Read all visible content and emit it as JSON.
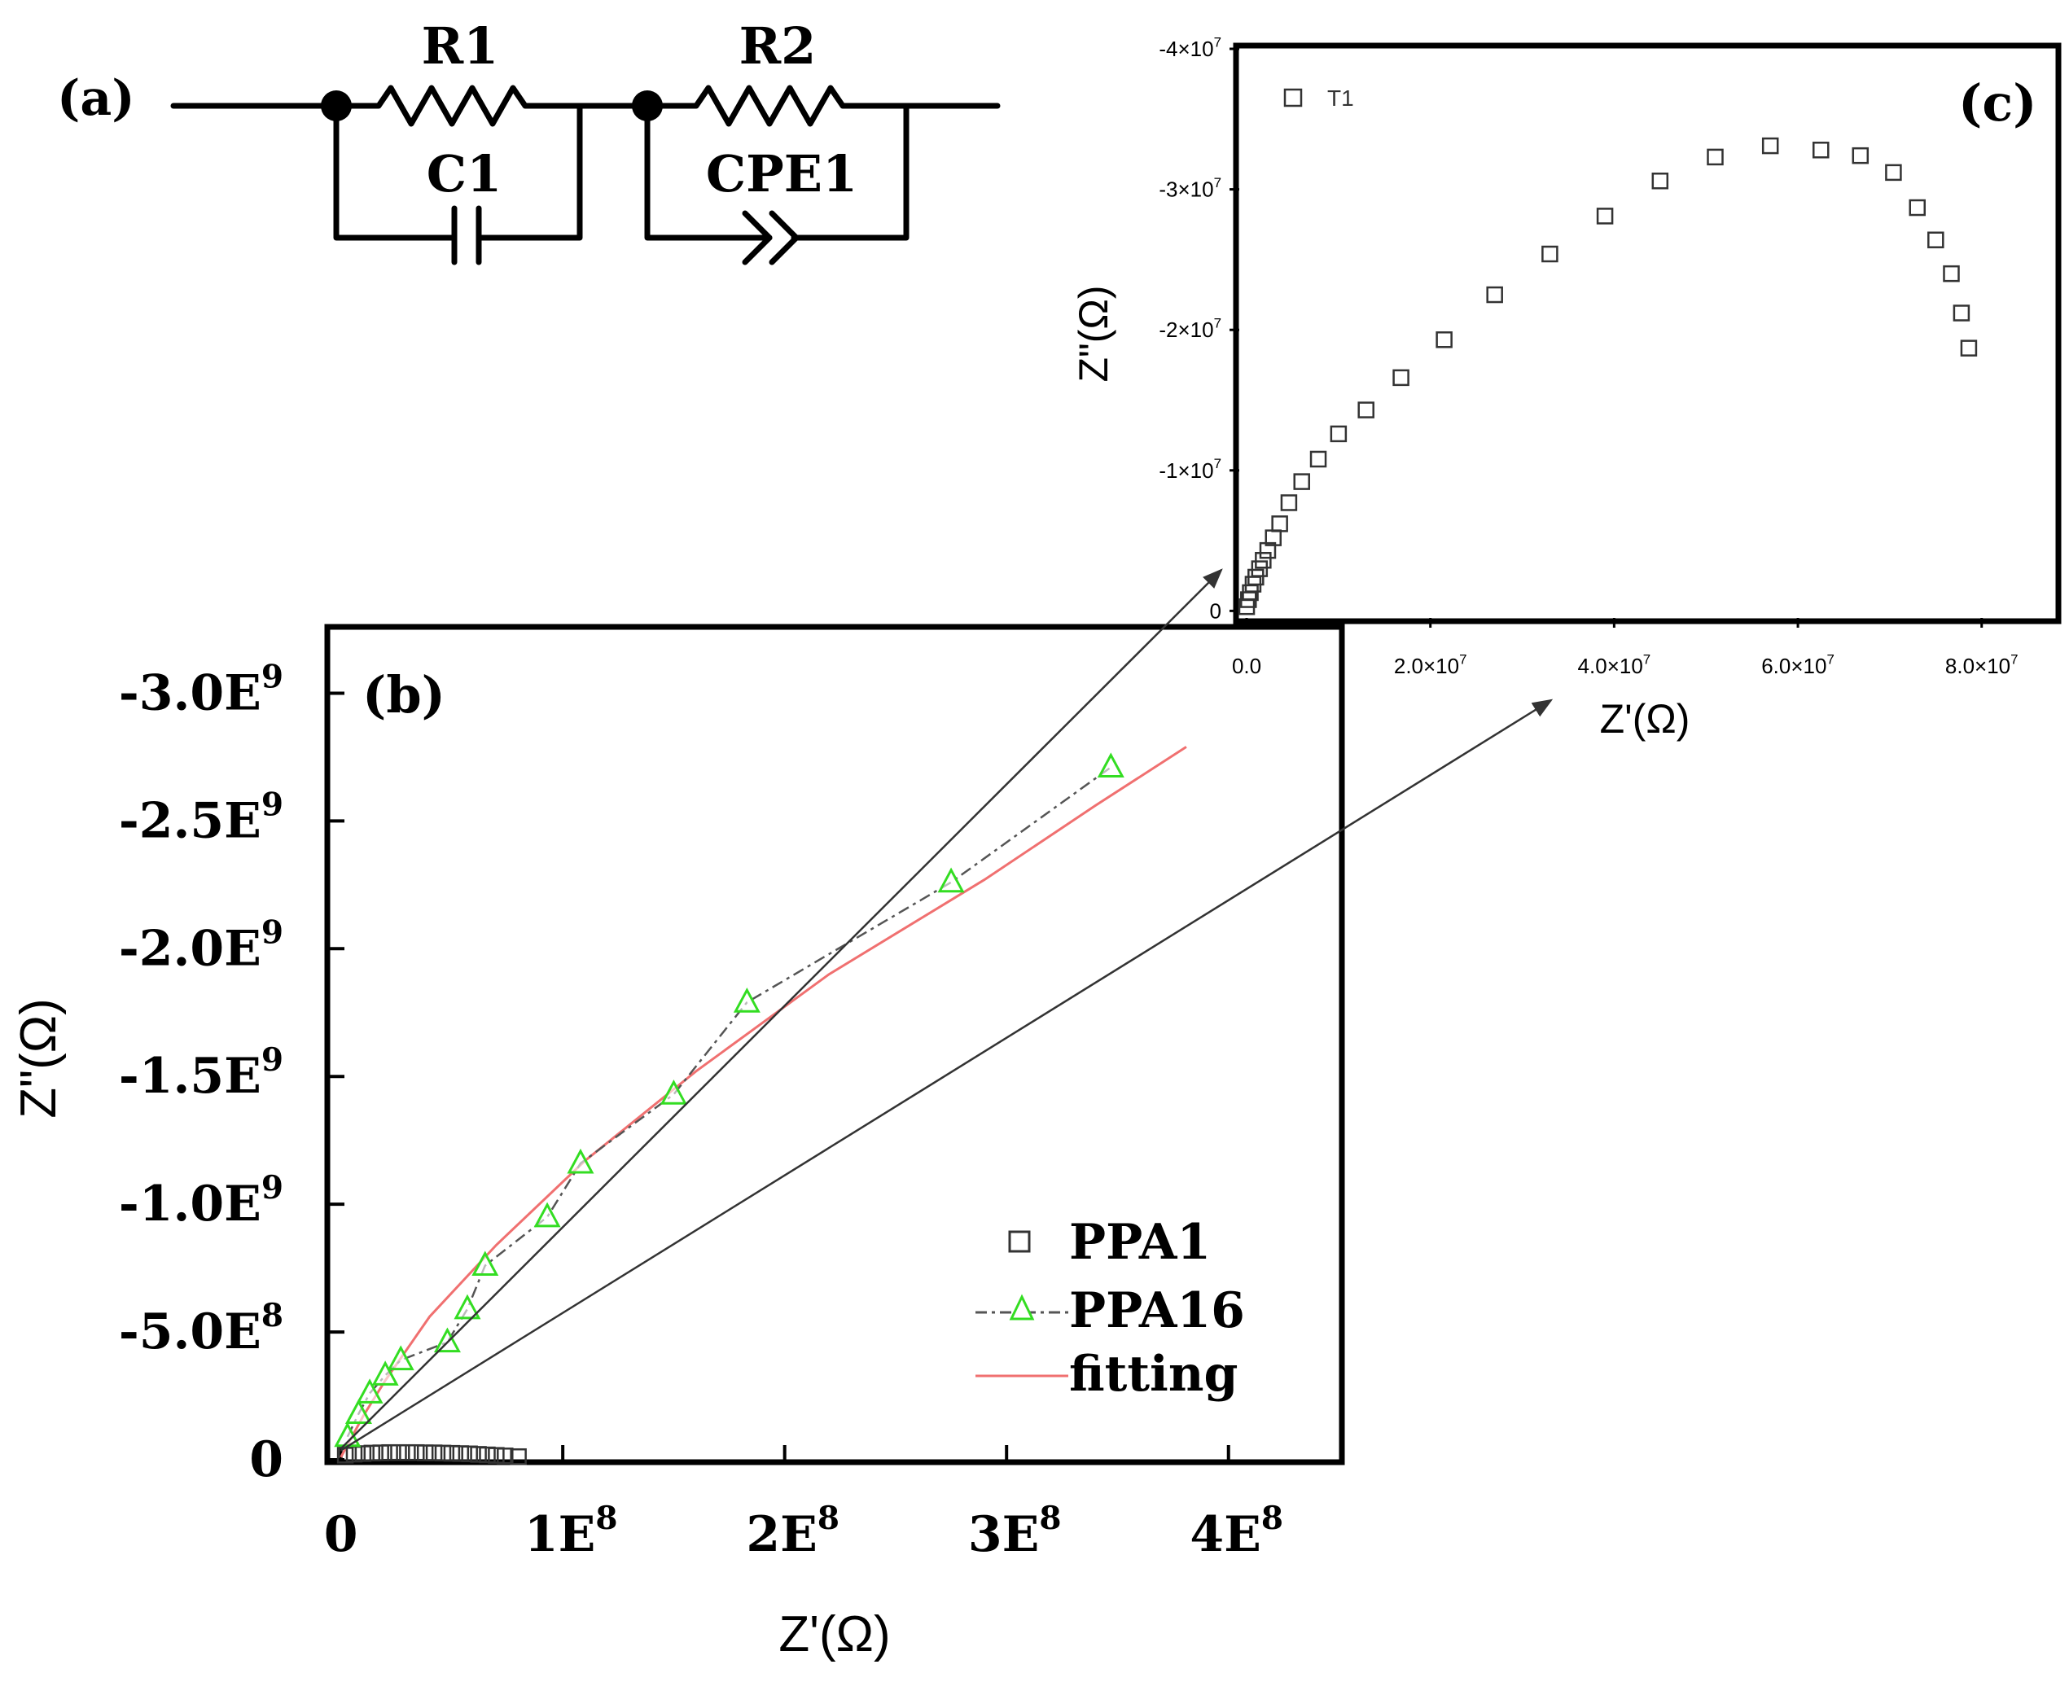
{
  "colors": {
    "axis": "#000000",
    "ppa1": "#333333",
    "ppa16_marker": "#33dd22",
    "ppa16_line": "#555555",
    "fitting": "#f07070",
    "arrow": "#333333",
    "t1": "#333333"
  },
  "circuit": {
    "label": "(a)",
    "r1": "R1",
    "c1": "C1",
    "r2": "R2",
    "cpe1": "CPE1"
  },
  "chart_data": [
    {
      "id": "b",
      "type": "scatter",
      "panel_label": "(b)",
      "xlabel": "Z'(Ω)",
      "ylabel": "Z\"(Ω)",
      "xlim": [
        -5000000,
        450000000
      ],
      "ylim": [
        0,
        -3250000000
      ],
      "x_ticks": [
        {
          "value": 0,
          "base": "0",
          "exp": ""
        },
        {
          "value": 100000000,
          "base": "1E",
          "exp": "8"
        },
        {
          "value": 200000000,
          "base": "2E",
          "exp": "8"
        },
        {
          "value": 300000000,
          "base": "3E",
          "exp": "8"
        },
        {
          "value": 400000000,
          "base": "4E",
          "exp": "8"
        }
      ],
      "y_ticks": [
        {
          "value": 0,
          "base": "0",
          "exp": ""
        },
        {
          "value": -500000000,
          "base": "-5.0E",
          "exp": "8"
        },
        {
          "value": -1000000000,
          "base": "-1.0E",
          "exp": "9"
        },
        {
          "value": -1500000000,
          "base": "-1.5E",
          "exp": "9"
        },
        {
          "value": -2000000000,
          "base": "-2.0E",
          "exp": "9"
        },
        {
          "value": -2500000000,
          "base": "-2.5E",
          "exp": "9"
        },
        {
          "value": -3000000000,
          "base": "-3.0E",
          "exp": "9"
        }
      ],
      "legend_position": "bottom-right",
      "series": [
        {
          "name": "PPA1",
          "marker": "square",
          "x": [
            2000000,
            6000000,
            10000000,
            14000000,
            18000000,
            22000000,
            26000000,
            30000000,
            34000000,
            38000000,
            42000000,
            46000000,
            50000000,
            54000000,
            58000000,
            62000000,
            66000000,
            70000000,
            74000000,
            80000000
          ],
          "y": [
            -18000000,
            -22000000,
            -24000000,
            -26000000,
            -27000000,
            -28000000,
            -28000000,
            -28000000,
            -28000000,
            -27000000,
            -27000000,
            -26000000,
            -25000000,
            -24000000,
            -23000000,
            -21000000,
            -19000000,
            -17000000,
            -15000000,
            -12000000
          ]
        },
        {
          "name": "PPA16",
          "marker": "triangle",
          "x": [
            3000000,
            8000000,
            13000000,
            20000000,
            27000000,
            48000000,
            57000000,
            65000000,
            93000000,
            108000000,
            150000000,
            183000000,
            275000000,
            347000000
          ],
          "y": [
            -90000000,
            -180000000,
            -260000000,
            -330000000,
            -390000000,
            -460000000,
            -590000000,
            -760000000,
            -950000000,
            -1160000000,
            -1430000000,
            -1790000000,
            -2260000000,
            -2710000000
          ]
        },
        {
          "name": "fitting",
          "marker": "line",
          "x": [
            0,
            10000000,
            20000000,
            40000000,
            70000000,
            110000000,
            160000000,
            220000000,
            290000000,
            340000000,
            381000000
          ],
          "y": [
            -10000000,
            -170000000,
            -310000000,
            -560000000,
            -840000000,
            -1170000000,
            -1520000000,
            -1900000000,
            -2270000000,
            -2560000000,
            -2790000000
          ]
        }
      ]
    },
    {
      "id": "c",
      "type": "scatter",
      "panel_label": "(c)",
      "xlabel": "Z'(Ω)",
      "ylabel": "Z\"(Ω)",
      "xlim": [
        -800000,
        88000000
      ],
      "ylim": [
        500000,
        -40000000
      ],
      "x_ticks": [
        {
          "value": 0,
          "label": "0.0",
          "exp": ""
        },
        {
          "value": 20000000,
          "label": "2.0×10",
          "exp": "7"
        },
        {
          "value": 40000000,
          "label": "4.0×10",
          "exp": "7"
        },
        {
          "value": 60000000,
          "label": "6.0×10",
          "exp": "7"
        },
        {
          "value": 80000000,
          "label": "8.0×10",
          "exp": "7"
        }
      ],
      "y_ticks": [
        {
          "value": 0,
          "label": "0",
          "exp": ""
        },
        {
          "value": -10000000,
          "label": "-1×10",
          "exp": "7"
        },
        {
          "value": -20000000,
          "label": "-2×10",
          "exp": "7"
        },
        {
          "value": -30000000,
          "label": "-3×10",
          "exp": "7"
        },
        {
          "value": -40000000,
          "label": "-4×10",
          "exp": "7"
        }
      ],
      "legend_position": "top-left",
      "series": [
        {
          "name": "T1",
          "marker": "square",
          "x": [
            0,
            200000,
            400000,
            700000,
            1000000,
            1400000,
            1800000,
            2300000,
            2900000,
            3600000,
            4600000,
            6000000,
            7800000,
            10000000,
            13000000,
            16800000,
            21500000,
            27000000,
            33000000,
            39000000,
            45000000,
            51000000,
            57000000,
            62500000,
            66800000,
            70400000,
            73000000,
            75000000,
            76700000,
            77800000,
            78600000
          ],
          "y": [
            -300000,
            -800000,
            -1300000,
            -1900000,
            -2400000,
            -3000000,
            -3600000,
            -4300000,
            -5200000,
            -6200000,
            -7700000,
            -9200000,
            -10800000,
            -12600000,
            -14300000,
            -16600000,
            -19300000,
            -22500000,
            -25400000,
            -28100000,
            -30600000,
            -32300000,
            -33100000,
            -32800000,
            -32400000,
            -31200000,
            -28700000,
            -26400000,
            -24000000,
            -21200000,
            -18700000
          ]
        }
      ]
    }
  ]
}
